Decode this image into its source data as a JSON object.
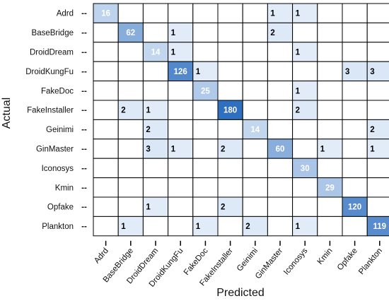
{
  "chart_data": {
    "type": "heatmap",
    "xlabel": "Predicted",
    "ylabel": "Actual",
    "categories": [
      "Adrd",
      "BaseBridge",
      "DroidDream",
      "DroidKungFu",
      "FakeDoc",
      "FakeInstaller",
      "Geinimi",
      "GinMaster",
      "Iconosys",
      "Kmin",
      "Opfake",
      "Plankton"
    ],
    "matrix": [
      [
        16,
        null,
        null,
        null,
        null,
        null,
        null,
        1,
        1,
        null,
        null,
        null
      ],
      [
        null,
        62,
        null,
        1,
        null,
        null,
        null,
        2,
        null,
        null,
        null,
        null
      ],
      [
        null,
        null,
        14,
        1,
        null,
        null,
        null,
        null,
        1,
        null,
        null,
        null
      ],
      [
        null,
        null,
        null,
        126,
        1,
        null,
        null,
        null,
        null,
        null,
        3,
        3
      ],
      [
        null,
        null,
        null,
        null,
        25,
        null,
        null,
        null,
        1,
        null,
        null,
        null
      ],
      [
        null,
        2,
        1,
        null,
        null,
        180,
        null,
        null,
        2,
        null,
        null,
        null
      ],
      [
        null,
        null,
        2,
        null,
        null,
        null,
        14,
        null,
        null,
        null,
        null,
        2
      ],
      [
        null,
        null,
        3,
        1,
        null,
        2,
        null,
        60,
        null,
        1,
        null,
        1
      ],
      [
        null,
        null,
        null,
        null,
        null,
        null,
        null,
        null,
        30,
        null,
        null,
        null
      ],
      [
        null,
        null,
        null,
        null,
        null,
        null,
        null,
        null,
        null,
        29,
        null,
        null
      ],
      [
        null,
        null,
        1,
        null,
        null,
        2,
        null,
        null,
        null,
        null,
        120,
        null
      ],
      [
        null,
        1,
        null,
        null,
        1,
        null,
        2,
        null,
        1,
        null,
        null,
        119
      ]
    ],
    "color_scale": {
      "low": "#eaf2fb",
      "high": "#2f6fbf"
    },
    "grid": true
  }
}
